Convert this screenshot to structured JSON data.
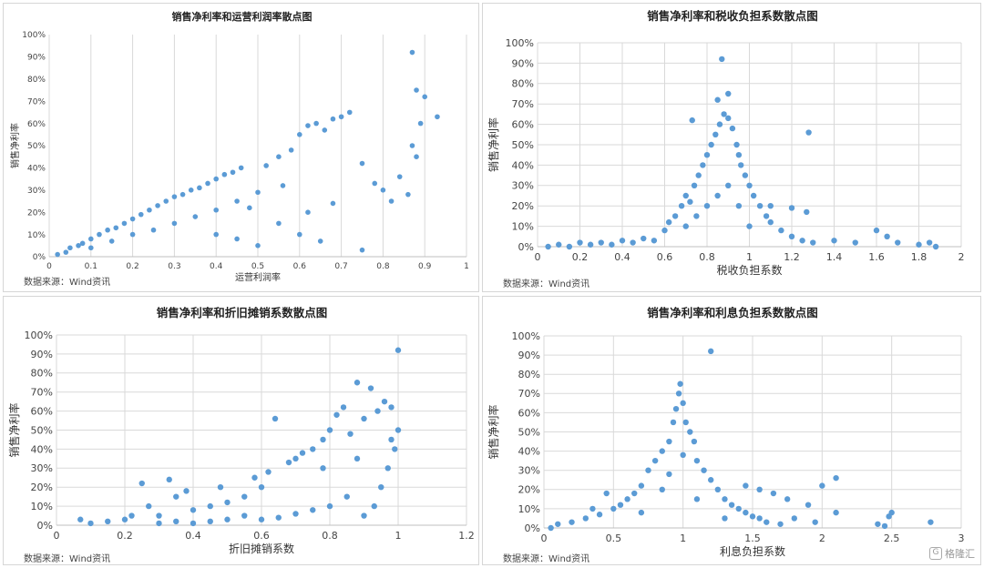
{
  "source_note": "数据来源：Wind资讯",
  "watermark": "格隆汇",
  "point_color": "#5b9bd5",
  "chart_data": [
    {
      "type": "scatter",
      "title": "销售净利率和运营利润率散点图",
      "xlabel": "运营利润率",
      "ylabel": "销售净利率",
      "xlim": [
        0,
        1
      ],
      "ylim": [
        0,
        1
      ],
      "xticks": [
        "0",
        "0.1",
        "0.2",
        "0.3",
        "0.4",
        "0.5",
        "0.6",
        "0.7",
        "0.8",
        "0.9",
        "1"
      ],
      "yticks": [
        "0%",
        "10%",
        "20%",
        "30%",
        "40%",
        "50%",
        "60%",
        "70%",
        "80%",
        "90%",
        "100%"
      ],
      "grid": "vertical",
      "points": [
        [
          0.02,
          0.01
        ],
        [
          0.04,
          0.02
        ],
        [
          0.05,
          0.04
        ],
        [
          0.07,
          0.05
        ],
        [
          0.08,
          0.06
        ],
        [
          0.1,
          0.08
        ],
        [
          0.12,
          0.1
        ],
        [
          0.14,
          0.12
        ],
        [
          0.16,
          0.13
        ],
        [
          0.18,
          0.15
        ],
        [
          0.2,
          0.17
        ],
        [
          0.22,
          0.19
        ],
        [
          0.24,
          0.21
        ],
        [
          0.26,
          0.23
        ],
        [
          0.28,
          0.25
        ],
        [
          0.3,
          0.27
        ],
        [
          0.32,
          0.28
        ],
        [
          0.34,
          0.3
        ],
        [
          0.36,
          0.31
        ],
        [
          0.38,
          0.33
        ],
        [
          0.4,
          0.35
        ],
        [
          0.42,
          0.37
        ],
        [
          0.44,
          0.38
        ],
        [
          0.46,
          0.4
        ],
        [
          0.1,
          0.04
        ],
        [
          0.15,
          0.07
        ],
        [
          0.2,
          0.1
        ],
        [
          0.25,
          0.12
        ],
        [
          0.3,
          0.15
        ],
        [
          0.35,
          0.18
        ],
        [
          0.4,
          0.21
        ],
        [
          0.45,
          0.25
        ],
        [
          0.5,
          0.29
        ],
        [
          0.52,
          0.41
        ],
        [
          0.55,
          0.45
        ],
        [
          0.58,
          0.48
        ],
        [
          0.6,
          0.55
        ],
        [
          0.62,
          0.59
        ],
        [
          0.64,
          0.6
        ],
        [
          0.66,
          0.57
        ],
        [
          0.68,
          0.62
        ],
        [
          0.7,
          0.63
        ],
        [
          0.72,
          0.65
        ],
        [
          0.75,
          0.42
        ],
        [
          0.78,
          0.33
        ],
        [
          0.8,
          0.3
        ],
        [
          0.82,
          0.25
        ],
        [
          0.84,
          0.36
        ],
        [
          0.86,
          0.28
        ],
        [
          0.87,
          0.92
        ],
        [
          0.88,
          0.75
        ],
        [
          0.89,
          0.6
        ],
        [
          0.9,
          0.72
        ],
        [
          0.87,
          0.5
        ],
        [
          0.93,
          0.63
        ],
        [
          0.88,
          0.45
        ],
        [
          0.75,
          0.03
        ],
        [
          0.6,
          0.1
        ],
        [
          0.65,
          0.07
        ],
        [
          0.55,
          0.15
        ],
        [
          0.5,
          0.05
        ],
        [
          0.45,
          0.08
        ],
        [
          0.4,
          0.1
        ],
        [
          0.62,
          0.2
        ],
        [
          0.68,
          0.24
        ],
        [
          0.56,
          0.32
        ],
        [
          0.48,
          0.22
        ]
      ]
    },
    {
      "type": "scatter",
      "title": "销售净利率和税收负担系数散点图",
      "xlabel": "税收负担系数",
      "ylabel": "销售净利率",
      "xlim": [
        0,
        2
      ],
      "ylim": [
        0,
        1
      ],
      "xticks": [
        "0",
        "0.2",
        "0.4",
        "0.6",
        "0.8",
        "1",
        "1.2",
        "1.4",
        "1.6",
        "1.8",
        "2"
      ],
      "yticks": [
        "0%",
        "10%",
        "20%",
        "30%",
        "40%",
        "50%",
        "60%",
        "70%",
        "80%",
        "90%",
        "100%"
      ],
      "grid": "both",
      "points": [
        [
          0.05,
          0.0
        ],
        [
          0.1,
          0.01
        ],
        [
          0.15,
          0.0
        ],
        [
          0.2,
          0.02
        ],
        [
          0.25,
          0.01
        ],
        [
          0.3,
          0.02
        ],
        [
          0.35,
          0.01
        ],
        [
          0.4,
          0.03
        ],
        [
          0.45,
          0.02
        ],
        [
          0.5,
          0.04
        ],
        [
          0.55,
          0.03
        ],
        [
          0.6,
          0.08
        ],
        [
          0.62,
          0.12
        ],
        [
          0.65,
          0.15
        ],
        [
          0.68,
          0.2
        ],
        [
          0.7,
          0.25
        ],
        [
          0.72,
          0.22
        ],
        [
          0.74,
          0.3
        ],
        [
          0.76,
          0.35
        ],
        [
          0.78,
          0.4
        ],
        [
          0.8,
          0.45
        ],
        [
          0.82,
          0.5
        ],
        [
          0.84,
          0.55
        ],
        [
          0.86,
          0.6
        ],
        [
          0.88,
          0.65
        ],
        [
          0.9,
          0.63
        ],
        [
          0.92,
          0.58
        ],
        [
          0.94,
          0.5
        ],
        [
          0.95,
          0.45
        ],
        [
          0.96,
          0.4
        ],
        [
          0.98,
          0.35
        ],
        [
          1.0,
          0.3
        ],
        [
          1.02,
          0.25
        ],
        [
          1.05,
          0.2
        ],
        [
          1.08,
          0.15
        ],
        [
          1.1,
          0.12
        ],
        [
          1.15,
          0.08
        ],
        [
          1.2,
          0.05
        ],
        [
          1.25,
          0.03
        ],
        [
          1.3,
          0.02
        ],
        [
          0.87,
          0.92
        ],
        [
          0.9,
          0.75
        ],
        [
          0.85,
          0.72
        ],
        [
          0.73,
          0.62
        ],
        [
          1.28,
          0.56
        ],
        [
          1.1,
          0.2
        ],
        [
          1.2,
          0.19
        ],
        [
          1.27,
          0.17
        ],
        [
          1.4,
          0.03
        ],
        [
          1.5,
          0.02
        ],
        [
          1.6,
          0.08
        ],
        [
          1.65,
          0.05
        ],
        [
          1.7,
          0.02
        ],
        [
          1.8,
          0.01
        ],
        [
          1.85,
          0.02
        ],
        [
          1.88,
          0.0
        ],
        [
          0.7,
          0.1
        ],
        [
          0.75,
          0.15
        ],
        [
          0.8,
          0.2
        ],
        [
          0.85,
          0.25
        ],
        [
          0.9,
          0.3
        ],
        [
          0.95,
          0.2
        ],
        [
          1.0,
          0.1
        ]
      ]
    },
    {
      "type": "scatter",
      "title": "销售净利率和折旧摊销系数散点图",
      "xlabel": "折旧摊销系数",
      "ylabel": "销售净利率",
      "xlim": [
        0,
        1.2
      ],
      "ylim": [
        0,
        1
      ],
      "xticks": [
        "0",
        "0.2",
        "0.4",
        "0.6",
        "0.8",
        "1",
        "1.2"
      ],
      "yticks": [
        "0%",
        "10%",
        "20%",
        "30%",
        "40%",
        "50%",
        "60%",
        "70%",
        "80%",
        "90%",
        "100%"
      ],
      "grid": "both",
      "points": [
        [
          0.07,
          0.03
        ],
        [
          0.1,
          0.01
        ],
        [
          0.15,
          0.02
        ],
        [
          0.2,
          0.03
        ],
        [
          0.25,
          0.22
        ],
        [
          0.3,
          0.05
        ],
        [
          0.33,
          0.24
        ],
        [
          0.35,
          0.15
        ],
        [
          0.4,
          0.08
        ],
        [
          0.45,
          0.1
        ],
        [
          0.5,
          0.12
        ],
        [
          0.55,
          0.15
        ],
        [
          0.6,
          0.2
        ],
        [
          0.62,
          0.28
        ],
        [
          0.64,
          0.56
        ],
        [
          0.68,
          0.33
        ],
        [
          0.7,
          0.35
        ],
        [
          0.72,
          0.38
        ],
        [
          0.75,
          0.4
        ],
        [
          0.78,
          0.45
        ],
        [
          0.8,
          0.5
        ],
        [
          0.82,
          0.58
        ],
        [
          0.84,
          0.62
        ],
        [
          0.86,
          0.48
        ],
        [
          0.88,
          0.75
        ],
        [
          0.9,
          0.56
        ],
        [
          0.92,
          0.72
        ],
        [
          0.94,
          0.6
        ],
        [
          0.96,
          0.65
        ],
        [
          0.98,
          0.62
        ],
        [
          1.0,
          0.92
        ],
        [
          1.0,
          0.5
        ],
        [
          0.99,
          0.4
        ],
        [
          0.97,
          0.3
        ],
        [
          0.95,
          0.2
        ],
        [
          0.93,
          0.1
        ],
        [
          0.9,
          0.05
        ],
        [
          0.85,
          0.15
        ],
        [
          0.8,
          0.1
        ],
        [
          0.75,
          0.08
        ],
        [
          0.7,
          0.06
        ],
        [
          0.65,
          0.04
        ],
        [
          0.6,
          0.03
        ],
        [
          0.55,
          0.05
        ],
        [
          0.5,
          0.03
        ],
        [
          0.45,
          0.02
        ],
        [
          0.4,
          0.01
        ],
        [
          0.35,
          0.02
        ],
        [
          0.3,
          0.01
        ],
        [
          0.22,
          0.05
        ],
        [
          0.27,
          0.1
        ],
        [
          0.38,
          0.18
        ],
        [
          0.48,
          0.2
        ],
        [
          0.58,
          0.25
        ],
        [
          0.78,
          0.3
        ],
        [
          0.88,
          0.35
        ],
        [
          0.98,
          0.45
        ]
      ]
    },
    {
      "type": "scatter",
      "title": "销售净利率和利息负担系数散点图",
      "xlabel": "利息负担系数",
      "ylabel": "销售净利率",
      "xlim": [
        0,
        3
      ],
      "ylim": [
        0,
        1
      ],
      "xticks": [
        "0",
        "0.5",
        "1",
        "1.5",
        "2",
        "2.5",
        "3"
      ],
      "yticks": [
        "0%",
        "10%",
        "20%",
        "30%",
        "40%",
        "50%",
        "60%",
        "70%",
        "80%",
        "90%",
        "100%"
      ],
      "grid": "both",
      "points": [
        [
          0.05,
          0.0
        ],
        [
          0.1,
          0.02
        ],
        [
          0.2,
          0.03
        ],
        [
          0.3,
          0.05
        ],
        [
          0.4,
          0.07
        ],
        [
          0.5,
          0.1
        ],
        [
          0.55,
          0.12
        ],
        [
          0.6,
          0.15
        ],
        [
          0.65,
          0.18
        ],
        [
          0.7,
          0.22
        ],
        [
          0.75,
          0.3
        ],
        [
          0.8,
          0.35
        ],
        [
          0.85,
          0.4
        ],
        [
          0.9,
          0.45
        ],
        [
          0.93,
          0.55
        ],
        [
          0.95,
          0.62
        ],
        [
          0.97,
          0.7
        ],
        [
          0.98,
          0.75
        ],
        [
          1.0,
          0.65
        ],
        [
          1.02,
          0.55
        ],
        [
          1.05,
          0.5
        ],
        [
          1.08,
          0.45
        ],
        [
          1.1,
          0.35
        ],
        [
          1.15,
          0.3
        ],
        [
          1.2,
          0.25
        ],
        [
          1.2,
          0.92
        ],
        [
          1.25,
          0.2
        ],
        [
          1.3,
          0.15
        ],
        [
          1.35,
          0.12
        ],
        [
          1.4,
          0.1
        ],
        [
          1.45,
          0.08
        ],
        [
          1.5,
          0.06
        ],
        [
          1.55,
          0.05
        ],
        [
          1.6,
          0.03
        ],
        [
          1.7,
          0.02
        ],
        [
          1.8,
          0.05
        ],
        [
          1.9,
          0.12
        ],
        [
          1.95,
          0.03
        ],
        [
          2.0,
          0.22
        ],
        [
          2.1,
          0.26
        ],
        [
          2.1,
          0.08
        ],
        [
          2.4,
          0.02
        ],
        [
          2.45,
          0.01
        ],
        [
          2.5,
          0.08
        ],
        [
          2.48,
          0.06
        ],
        [
          2.78,
          0.03
        ],
        [
          1.45,
          0.22
        ],
        [
          1.55,
          0.2
        ],
        [
          1.65,
          0.18
        ],
        [
          1.75,
          0.15
        ],
        [
          0.45,
          0.18
        ],
        [
          0.35,
          0.1
        ],
        [
          0.7,
          0.08
        ],
        [
          0.85,
          0.2
        ],
        [
          0.9,
          0.28
        ],
        [
          1.0,
          0.38
        ],
        [
          1.1,
          0.15
        ],
        [
          1.3,
          0.05
        ]
      ]
    }
  ]
}
